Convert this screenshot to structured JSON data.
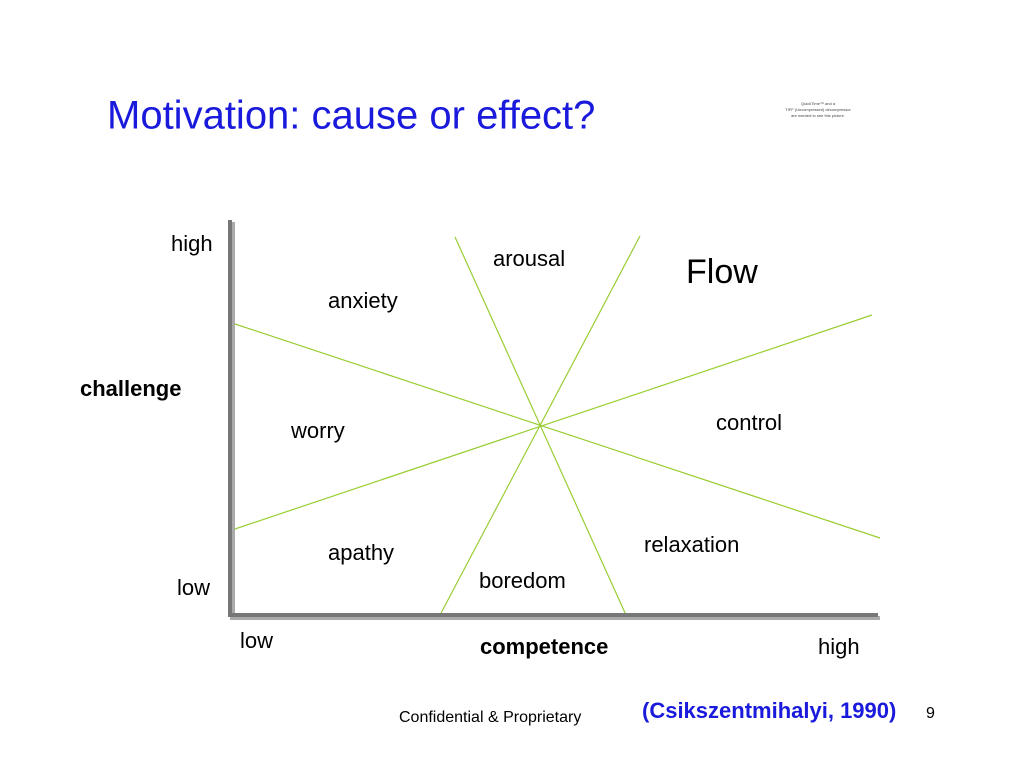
{
  "title": "Motivation: cause or effect?",
  "picture_placeholder": [
    "QuickTime™ and a",
    "TIFF (Uncompressed) decompressor",
    "are needed to see this picture."
  ],
  "diagram": {
    "y_axis": {
      "label": "challenge",
      "high": "high",
      "low": "low"
    },
    "x_axis": {
      "label": "competence",
      "low": "low",
      "high": "high"
    },
    "regions": [
      "arousal",
      "Flow",
      "anxiety",
      "worry",
      "control",
      "apathy",
      "relaxation",
      "boredom"
    ]
  },
  "footer": {
    "text": "Confidential & Proprietary",
    "citation": "(Csikszentmihalyi, 1990)",
    "page": "9"
  }
}
